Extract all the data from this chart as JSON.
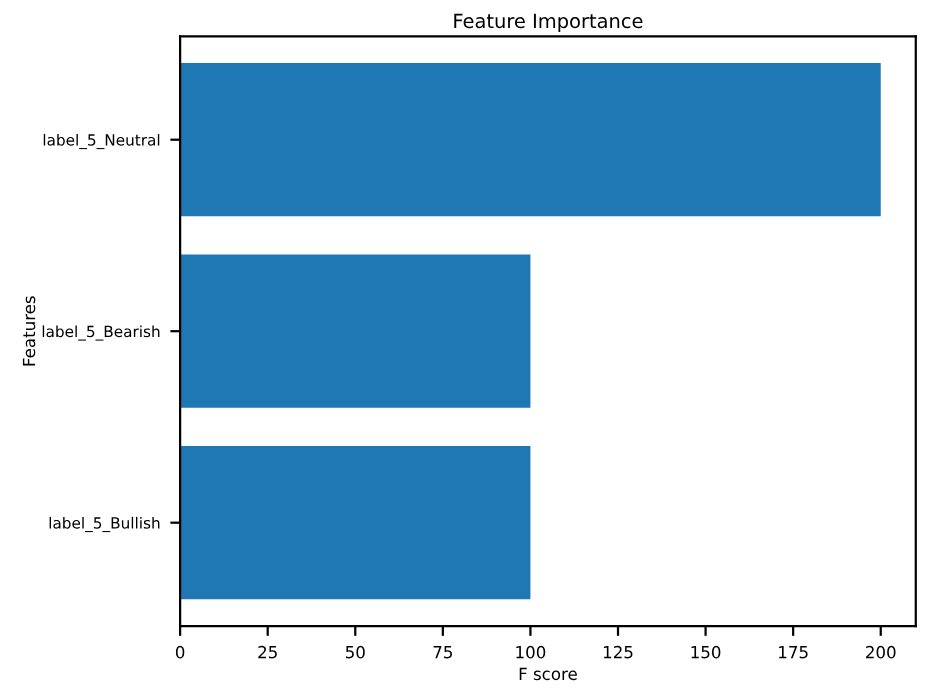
{
  "chart_data": {
    "type": "bar",
    "orientation": "horizontal",
    "title": "Feature Importance",
    "xlabel": "F score",
    "ylabel": "Features",
    "categories": [
      "label_5_Neutral",
      "label_5_Bearish",
      "label_5_Bullish"
    ],
    "values": [
      200,
      100,
      100
    ],
    "color": "#1f77b4",
    "xlim": [
      0,
      210
    ],
    "xticks": [
      0,
      25,
      50,
      75,
      100,
      125,
      150,
      175,
      200
    ],
    "grid": false
  }
}
